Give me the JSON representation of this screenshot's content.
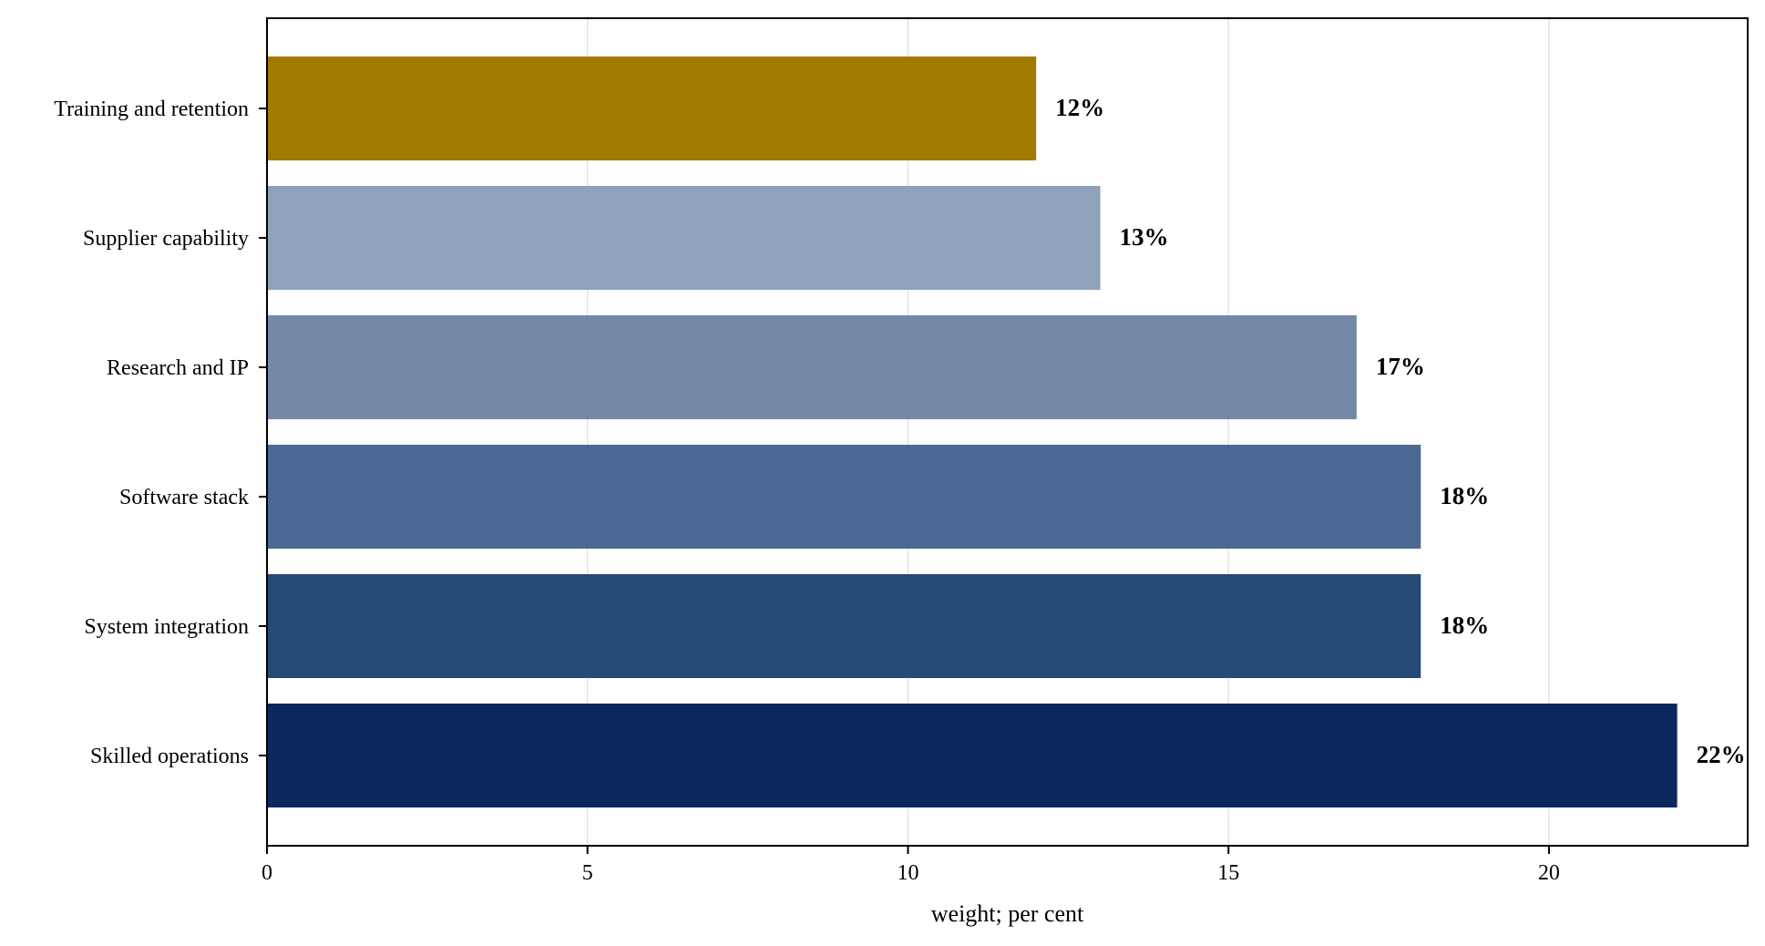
{
  "chart_data": {
    "type": "bar",
    "orientation": "horizontal",
    "categories": [
      "Training and retention",
      "Supplier capability",
      "Research and IP",
      "Software stack",
      "System integration",
      "Skilled operations"
    ],
    "values": [
      12,
      13,
      17,
      18,
      18,
      22
    ],
    "value_labels": [
      "12%",
      "13%",
      "17%",
      "18%",
      "18%",
      "22%"
    ],
    "bar_colors": [
      "#a37a00",
      "#8fa2ba",
      "#7489a8",
      "#4a6a93",
      "#254a74",
      "#0a285e"
    ],
    "xlabel": "weight; per cent",
    "ylabel": "",
    "title": "",
    "xlim": [
      0,
      23.1
    ],
    "xticks": [
      0,
      5,
      10,
      15,
      20
    ],
    "xtick_labels": [
      "0",
      "5",
      "10",
      "15",
      "20"
    ],
    "grid": "vertical",
    "legend": "none"
  }
}
